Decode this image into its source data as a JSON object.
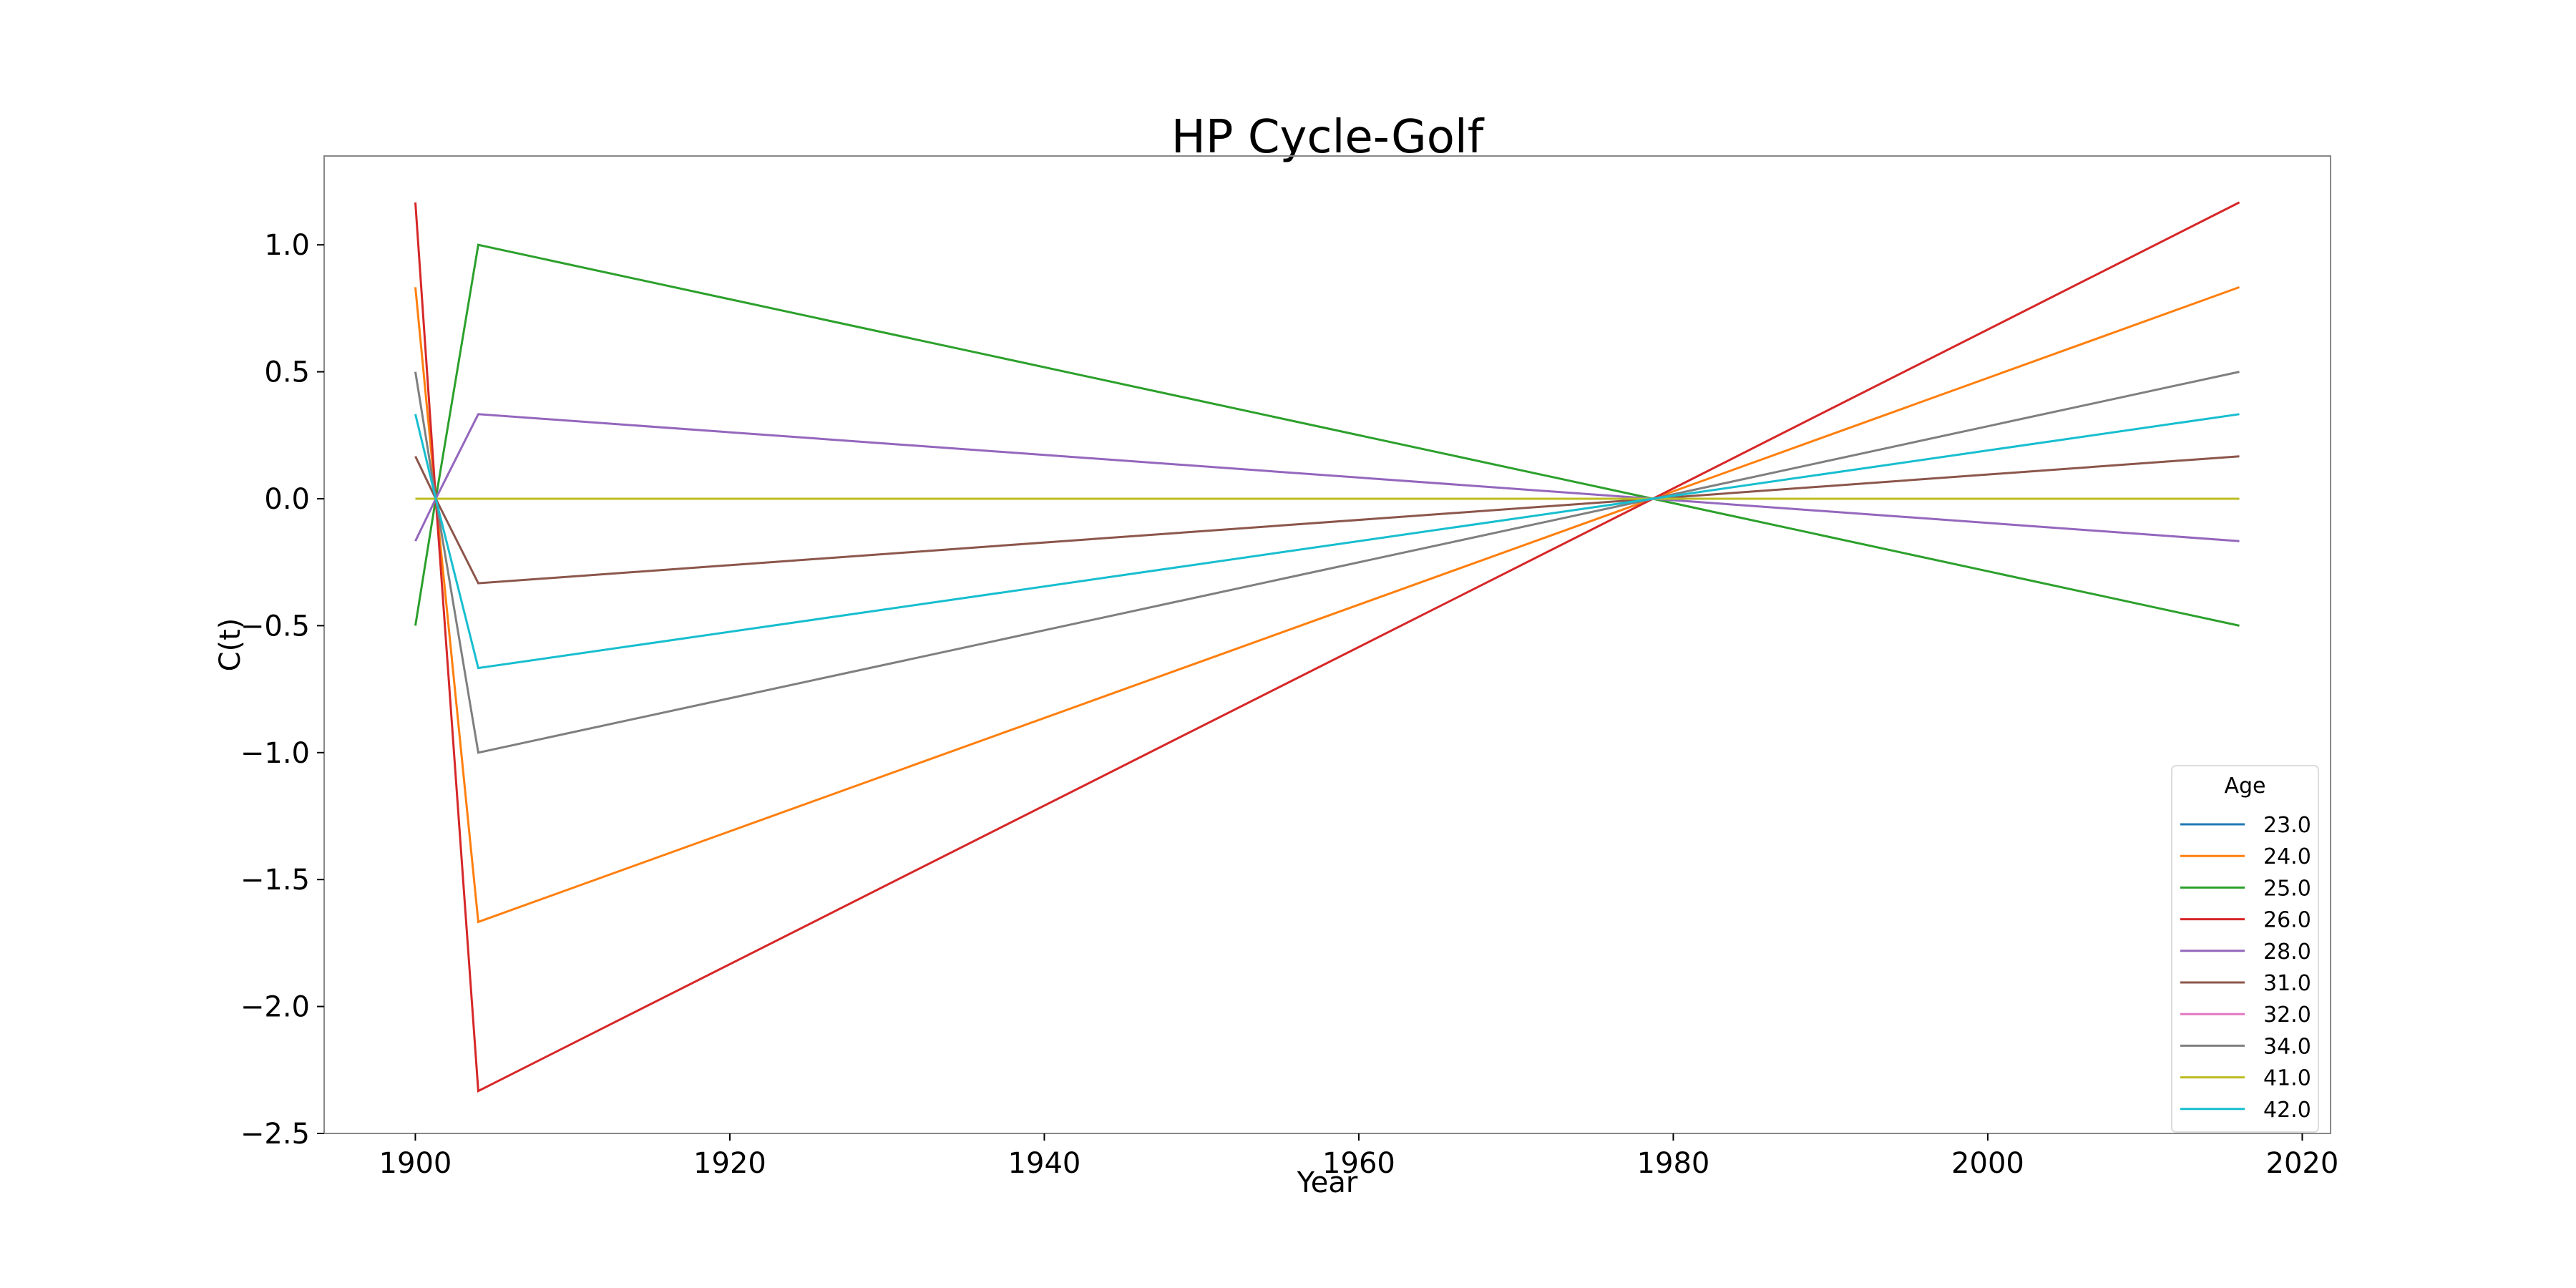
{
  "chart_data": {
    "type": "line",
    "title": "HP Cycle-Golf",
    "xlabel": "Year",
    "ylabel": "C(t)",
    "xlim": [
      1894.2,
      2021.8
    ],
    "ylim": [
      -2.5,
      1.35
    ],
    "x_ticks": [
      1900,
      1920,
      1940,
      1960,
      1980,
      2000,
      2020
    ],
    "x_tick_labels": [
      "1900",
      "1920",
      "1940",
      "1960",
      "1980",
      "2000",
      "2020"
    ],
    "y_ticks": [
      -2.5,
      -2.0,
      -1.5,
      -1.0,
      -0.5,
      0.0,
      0.5,
      1.0
    ],
    "y_tick_labels": [
      "−2.5",
      "−2.0",
      "−1.5",
      "−1.0",
      "−0.5",
      "0.0",
      "0.5",
      "1.0"
    ],
    "grid": false,
    "legend": {
      "title": "Age",
      "position": "lower-right"
    },
    "x": [
      1900,
      1901.3,
      1904,
      1978.7,
      2016
    ],
    "series": [
      {
        "name": "23.0",
        "color": "#1f77b4",
        "values": [
          0.0,
          0.0,
          0.0,
          0.0,
          0.0
        ]
      },
      {
        "name": "24.0",
        "color": "#ff7f0e",
        "values": [
          0.833,
          0.0,
          -1.667,
          0.0,
          0.833
        ]
      },
      {
        "name": "25.0",
        "color": "#2ca02c",
        "values": [
          -0.5,
          0.0,
          1.0,
          0.0,
          -0.5
        ]
      },
      {
        "name": "26.0",
        "color": "#d62728",
        "values": [
          1.167,
          0.0,
          -2.333,
          0.0,
          1.167
        ]
      },
      {
        "name": "28.0",
        "color": "#9467bd",
        "values": [
          -0.167,
          0.0,
          0.333,
          0.0,
          -0.167
        ]
      },
      {
        "name": "31.0",
        "color": "#8c564b",
        "values": [
          0.167,
          0.0,
          -0.333,
          0.0,
          0.167
        ]
      },
      {
        "name": "32.0",
        "color": "#e377c2",
        "values": [
          0.0,
          0.0,
          0.0,
          0.0,
          0.0
        ]
      },
      {
        "name": "34.0",
        "color": "#7f7f7f",
        "values": [
          0.5,
          0.0,
          -1.0,
          0.0,
          0.5
        ]
      },
      {
        "name": "41.0",
        "color": "#bcbd22",
        "values": [
          0.0,
          0.0,
          0.0,
          0.0,
          0.0
        ]
      },
      {
        "name": "42.0",
        "color": "#17becf",
        "values": [
          0.333,
          0.0,
          -0.667,
          0.0,
          0.333
        ]
      }
    ]
  }
}
